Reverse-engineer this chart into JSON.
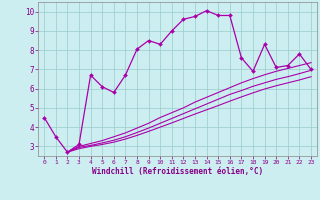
{
  "xlabel": "Windchill (Refroidissement éolien,°C)",
  "background_color": "#cceef0",
  "line_color": "#aa00aa",
  "xlim": [
    -0.5,
    23.5
  ],
  "ylim": [
    2.5,
    10.5
  ],
  "xticks": [
    0,
    1,
    2,
    3,
    4,
    5,
    6,
    7,
    8,
    9,
    10,
    11,
    12,
    13,
    14,
    15,
    16,
    17,
    18,
    19,
    20,
    21,
    22,
    23
  ],
  "yticks": [
    3,
    4,
    5,
    6,
    7,
    8,
    9,
    10
  ],
  "series1_x": [
    0,
    1,
    2,
    3,
    4,
    5,
    6,
    7,
    8,
    9,
    10,
    11,
    12,
    13,
    14,
    15,
    16,
    17,
    18,
    19,
    20,
    21,
    22,
    23
  ],
  "series1_y": [
    4.5,
    3.5,
    2.7,
    3.1,
    6.7,
    6.1,
    5.8,
    6.7,
    8.05,
    8.5,
    8.3,
    9.0,
    9.6,
    9.75,
    10.05,
    9.8,
    9.8,
    7.6,
    6.9,
    8.3,
    7.1,
    7.2,
    7.8,
    7.0
  ],
  "series2_x": [
    2,
    3,
    4,
    5,
    6,
    7,
    8,
    9,
    10,
    11,
    12,
    13,
    14,
    15,
    16,
    17,
    18,
    19,
    20,
    21,
    22,
    23
  ],
  "series2_y": [
    2.7,
    3.0,
    3.15,
    3.3,
    3.5,
    3.7,
    3.95,
    4.2,
    4.5,
    4.75,
    5.0,
    5.3,
    5.55,
    5.8,
    6.05,
    6.3,
    6.52,
    6.72,
    6.9,
    7.05,
    7.2,
    7.35
  ],
  "series3_x": [
    2,
    3,
    4,
    5,
    6,
    7,
    8,
    9,
    10,
    11,
    12,
    13,
    14,
    15,
    16,
    17,
    18,
    19,
    20,
    21,
    22,
    23
  ],
  "series3_y": [
    2.7,
    2.95,
    3.05,
    3.18,
    3.32,
    3.5,
    3.72,
    3.95,
    4.2,
    4.45,
    4.7,
    4.95,
    5.2,
    5.45,
    5.7,
    5.9,
    6.12,
    6.3,
    6.48,
    6.62,
    6.78,
    6.95
  ],
  "series4_x": [
    2,
    3,
    4,
    5,
    6,
    7,
    8,
    9,
    10,
    11,
    12,
    13,
    14,
    15,
    16,
    17,
    18,
    19,
    20,
    21,
    22,
    23
  ],
  "series4_y": [
    2.7,
    2.88,
    3.0,
    3.1,
    3.22,
    3.38,
    3.57,
    3.78,
    4.0,
    4.22,
    4.45,
    4.68,
    4.9,
    5.12,
    5.35,
    5.57,
    5.78,
    5.98,
    6.15,
    6.3,
    6.45,
    6.62
  ],
  "grid_color": "#99cccc",
  "tick_color": "#880088",
  "xlabel_color": "#880088"
}
